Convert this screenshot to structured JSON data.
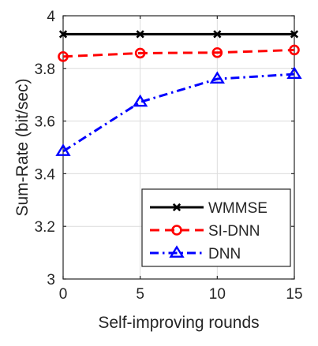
{
  "chart_data": {
    "type": "line",
    "xlabel": "Self-improving rounds",
    "ylabel": "Sum-Rate (bit/sec)",
    "x": [
      0,
      5,
      10,
      15
    ],
    "xlim": [
      0,
      15
    ],
    "ylim": [
      3,
      4
    ],
    "xticks": [
      "0",
      "5",
      "10",
      "15"
    ],
    "yticks": [
      "3",
      "3.2",
      "3.4",
      "3.6",
      "3.8",
      "4"
    ],
    "grid": true,
    "legend_position": "bottom-right",
    "series": [
      {
        "name": "WMMSE",
        "values": [
          3.93,
          3.93,
          3.93,
          3.93
        ],
        "color": "#000000",
        "dash": "solid",
        "marker": "x"
      },
      {
        "name": "SI-DNN",
        "values": [
          3.845,
          3.858,
          3.86,
          3.87
        ],
        "color": "#ff0000",
        "dash": "dashed",
        "marker": "circle"
      },
      {
        "name": "DNN",
        "values": [
          3.485,
          3.672,
          3.76,
          3.778
        ],
        "color": "#0000ff",
        "dash": "dashdot",
        "marker": "triangle"
      }
    ]
  }
}
